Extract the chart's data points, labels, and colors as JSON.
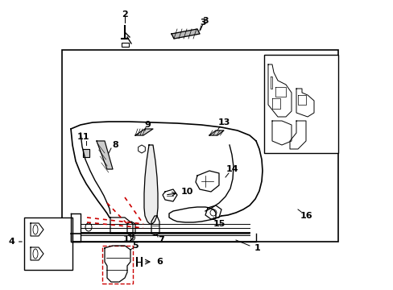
{
  "bg_color": "#ffffff",
  "line_color": "#000000",
  "red_color": "#cc0000",
  "fig_width": 4.89,
  "fig_height": 3.6,
  "dpi": 100
}
